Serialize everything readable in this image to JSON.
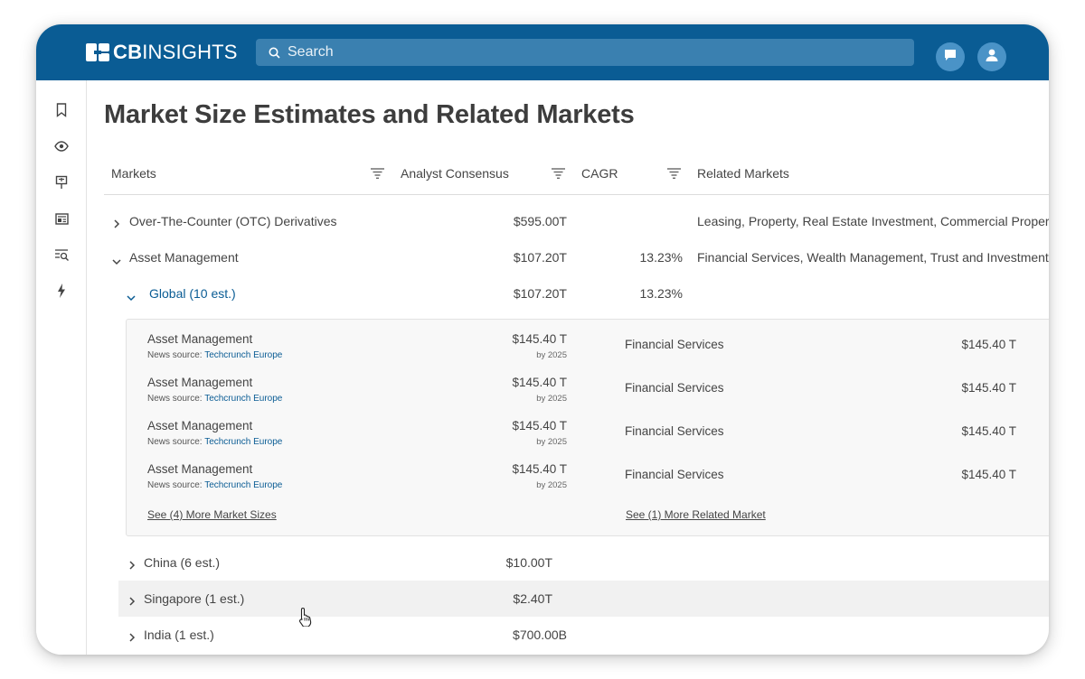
{
  "app": {
    "logo_bold": "CB",
    "logo_light": "INSIGHTS",
    "search_placeholder": "Search"
  },
  "sidebar": {
    "icons": [
      "bookmark-icon",
      "eye-icon",
      "presentation-icon",
      "news-icon",
      "search-list-icon",
      "lightning-icon"
    ]
  },
  "page": {
    "title": "Market Size Estimates and Related Markets"
  },
  "table": {
    "headers": {
      "markets": "Markets",
      "analyst_consensus": "Analyst Consensus",
      "cagr": "CAGR",
      "related_markets": "Related Markets"
    },
    "rows": [
      {
        "name": "Over-The-Counter (OTC) Derivatives",
        "consensus": "$595.00T",
        "cagr": "",
        "related": "Leasing, Property, Real Estate Investment, Commercial Propery",
        "expanded": false
      },
      {
        "name": "Asset Management",
        "consensus": "$107.20T",
        "cagr": "13.23%",
        "related": "Financial Services, Wealth Management, Trust and Investment",
        "expanded": true
      }
    ],
    "sub_rows": [
      {
        "name": "Global (10 est.)",
        "consensus": "$107.20T",
        "cagr": "13.23%",
        "expanded": true
      },
      {
        "name": "China (6 est.)",
        "consensus": "$10.00T",
        "cagr": "",
        "expanded": false
      },
      {
        "name": "Singapore (1 est.)",
        "consensus": "$2.40T",
        "cagr": "",
        "expanded": false
      },
      {
        "name": "India (1 est.)",
        "consensus": "$700.00B",
        "cagr": "",
        "expanded": false
      }
    ],
    "detail": {
      "source_prefix": "News source:",
      "estimates": [
        {
          "name": "Asset Management",
          "source": "Techcrunch Europe",
          "value": "$145.40 T",
          "by": "by 2025",
          "related": "Financial Services",
          "related_value": "$145.40 T"
        },
        {
          "name": "Asset Management",
          "source": "Techcrunch Europe",
          "value": "$145.40 T",
          "by": "by 2025",
          "related": "Financial Services",
          "related_value": "$145.40 T"
        },
        {
          "name": "Asset Management",
          "source": "Techcrunch Europe",
          "value": "$145.40 T",
          "by": "by 2025",
          "related": "Financial Services",
          "related_value": "$145.40 T"
        },
        {
          "name": "Asset Management",
          "source": "Techcrunch Europe",
          "value": "$145.40 T",
          "by": "by 2025",
          "related": "Financial Services",
          "related_value": "$145.40 T"
        }
      ],
      "see_more_sizes": "See (4) More Market Sizes",
      "see_more_related": "See (1) More Related Market"
    }
  },
  "colors": {
    "brand": "#0a5c94",
    "search_bg": "#3a80b0",
    "link": "#0a5c94"
  }
}
